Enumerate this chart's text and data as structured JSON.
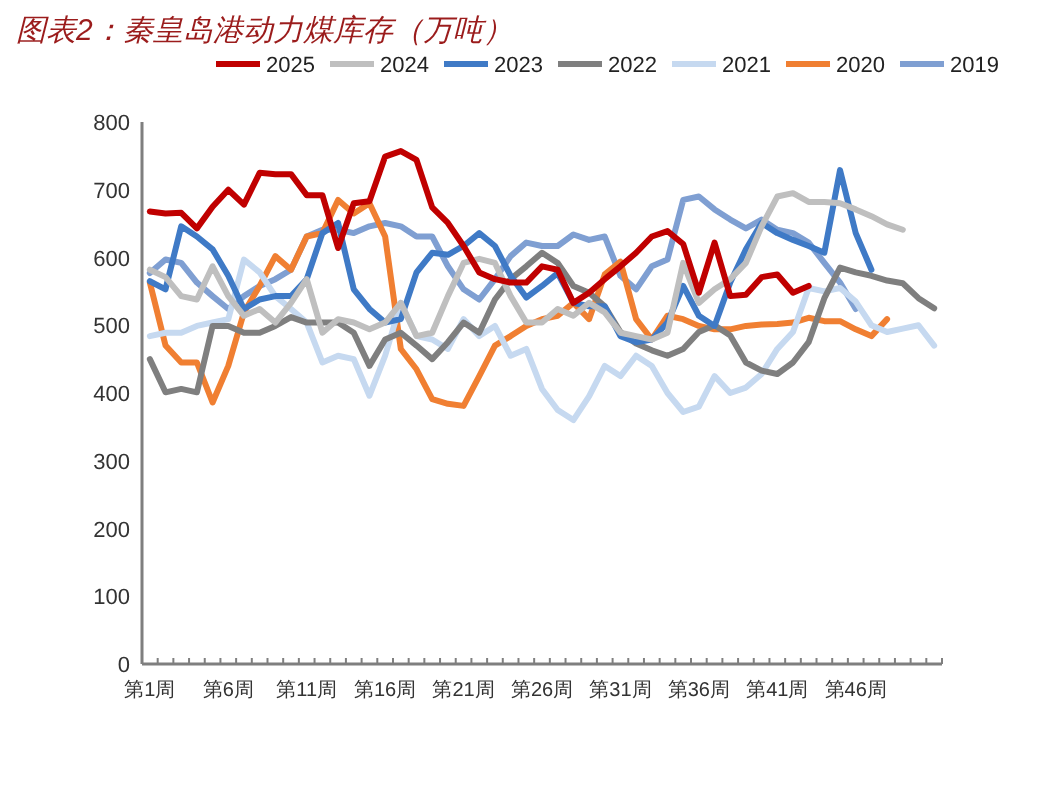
{
  "chart_data": {
    "type": "line",
    "title": "图表2：秦皇岛港动力煤库存（万吨）",
    "categories": [
      "第1周",
      null,
      null,
      null,
      null,
      "第6周",
      null,
      null,
      null,
      null,
      "第11周",
      null,
      null,
      null,
      null,
      "第16周",
      null,
      null,
      null,
      null,
      "第21周",
      null,
      null,
      null,
      null,
      "第26周",
      null,
      null,
      null,
      null,
      "第31周",
      null,
      null,
      null,
      null,
      "第36周",
      null,
      null,
      null,
      null,
      "第41周",
      null,
      null,
      null,
      null,
      "第46周",
      null,
      null,
      null,
      null,
      null
    ],
    "ylim": [
      0,
      800
    ],
    "yticks": [
      0,
      100,
      200,
      300,
      400,
      500,
      600,
      700,
      800
    ],
    "grid": false,
    "legend": "top",
    "marker": "none",
    "line_style": "solid",
    "series": [
      {
        "name": "2025",
        "color": "#c00000",
        "values": [
          668,
          665,
          666,
          643,
          675,
          700,
          678,
          725,
          723,
          723,
          692,
          692,
          614,
          680,
          683,
          749,
          757,
          744,
          674,
          651,
          617,
          578,
          568,
          563,
          563,
          587,
          582,
          533,
          548,
          568,
          587,
          607,
          631,
          639,
          620,
          548,
          622,
          543,
          545,
          571,
          575,
          548,
          558,
          null,
          null,
          null,
          null,
          null,
          null,
          null,
          null
        ]
      },
      {
        "name": "2024",
        "color": "#bfbfbf",
        "values": [
          582,
          571,
          543,
          538,
          587,
          543,
          514,
          524,
          504,
          533,
          568,
          489,
          509,
          504,
          494,
          504,
          533,
          484,
          489,
          543,
          592,
          598,
          592,
          543,
          504,
          504,
          524,
          514,
          533,
          519,
          489,
          484,
          479,
          489,
          592,
          533,
          553,
          568,
          592,
          646,
          690,
          695,
          682,
          682,
          680,
          671,
          661,
          649,
          641,
          null,
          null
        ]
      },
      {
        "name": "2023",
        "color": "#3f7ac6",
        "values": [
          565,
          553,
          646,
          631,
          612,
          573,
          524,
          538,
          543,
          543,
          568,
          636,
          651,
          553,
          524,
          504,
          509,
          578,
          607,
          604,
          617,
          636,
          617,
          573,
          541,
          558,
          577,
          533,
          528,
          528,
          484,
          475,
          479,
          504,
          558,
          514,
          499,
          563,
          612,
          651,
          636,
          626,
          617,
          607,
          729,
          636,
          582,
          null,
          null,
          null,
          null
        ]
      },
      {
        "name": "2022",
        "color": "#7f7f7f",
        "values": [
          450,
          401,
          406,
          401,
          499,
          499,
          489,
          489,
          499,
          512,
          504,
          504,
          504,
          489,
          440,
          479,
          489,
          470,
          450,
          475,
          504,
          489,
          538,
          568,
          587,
          607,
          592,
          558,
          548,
          528,
          490,
          473,
          463,
          455,
          465,
          490,
          500,
          485,
          445,
          433,
          428,
          445,
          475,
          540,
          585,
          578,
          573,
          566,
          562,
          540,
          525
        ]
      },
      {
        "name": "2021",
        "color": "#c6d9f0",
        "values": [
          484,
          489,
          489,
          499,
          504,
          509,
          597,
          578,
          543,
          524,
          504,
          445,
          455,
          450,
          396,
          455,
          533,
          484,
          479,
          465,
          509,
          484,
          499,
          455,
          465,
          406,
          375,
          360,
          395,
          440,
          425,
          455,
          440,
          400,
          372,
          380,
          425,
          400,
          408,
          428,
          465,
          490,
          555,
          550,
          555,
          535,
          500,
          490,
          495,
          500,
          470
        ]
      },
      {
        "name": "2020",
        "color": "#f07f32",
        "values": [
          563,
          470,
          445,
          445,
          386,
          440,
          519,
          558,
          602,
          582,
          631,
          636,
          685,
          665,
          680,
          631,
          465,
          435,
          391,
          384,
          381,
          425,
          470,
          484,
          499,
          509,
          514,
          533,
          509,
          575,
          594,
          509,
          479,
          514,
          509,
          499,
          494,
          494,
          499,
          501,
          502,
          504,
          511,
          506,
          506,
          494,
          484,
          509,
          null,
          null,
          null
        ]
      },
      {
        "name": "2019",
        "color": "#7f9fd2",
        "values": [
          577,
          597,
          592,
          563,
          543,
          524,
          543,
          558,
          568,
          582,
          631,
          641,
          641,
          636,
          646,
          651,
          646,
          631,
          631,
          587,
          553,
          538,
          568,
          602,
          622,
          617,
          617,
          634,
          626,
          631,
          573,
          553,
          587,
          597,
          685,
          690,
          671,
          656,
          643,
          656,
          641,
          636,
          622,
          592,
          563,
          524,
          null,
          null,
          null,
          null,
          null
        ]
      }
    ]
  }
}
